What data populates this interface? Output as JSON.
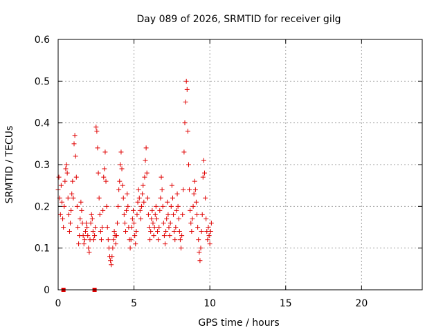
{
  "chart_data": {
    "type": "scatter",
    "title": "Day 089 of 2026, SRMTID for receiver gilg",
    "xlabel": "GPS time / hours",
    "ylabel": "SRMTID / TECUs",
    "xlim": [
      0,
      24
    ],
    "ylim": [
      0,
      0.6
    ],
    "xticks": [
      0,
      5,
      10,
      15,
      20
    ],
    "yticks": [
      0,
      0.1,
      0.2,
      0.3,
      0.4,
      0.5,
      0.6
    ],
    "grid": true,
    "marker": "plus",
    "color": "#e00000",
    "series": [
      {
        "name": "SRMTID",
        "points": [
          [
            0.0,
            0.24
          ],
          [
            0.05,
            0.27
          ],
          [
            0.1,
            0.22
          ],
          [
            0.15,
            0.18
          ],
          [
            0.2,
            0.25
          ],
          [
            0.25,
            0.21
          ],
          [
            0.3,
            0.17
          ],
          [
            0.35,
            0.15
          ],
          [
            0.4,
            0.2
          ],
          [
            0.45,
            0.26
          ],
          [
            0.5,
            0.29
          ],
          [
            0.55,
            0.3
          ],
          [
            0.6,
            0.28
          ],
          [
            0.65,
            0.22
          ],
          [
            0.7,
            0.18
          ],
          [
            0.75,
            0.14
          ],
          [
            0.8,
            0.16
          ],
          [
            0.85,
            0.19
          ],
          [
            0.9,
            0.23
          ],
          [
            0.95,
            0.26
          ],
          [
            1.0,
            0.22
          ],
          [
            1.05,
            0.35
          ],
          [
            1.1,
            0.37
          ],
          [
            1.15,
            0.32
          ],
          [
            1.2,
            0.27
          ],
          [
            1.25,
            0.2
          ],
          [
            1.3,
            0.15
          ],
          [
            1.35,
            0.11
          ],
          [
            1.4,
            0.13
          ],
          [
            1.45,
            0.17
          ],
          [
            1.5,
            0.21
          ],
          [
            1.55,
            0.19
          ],
          [
            1.6,
            0.16
          ],
          [
            1.65,
            0.13
          ],
          [
            1.7,
            0.11
          ],
          [
            1.75,
            0.12
          ],
          [
            1.8,
            0.14
          ],
          [
            1.85,
            0.16
          ],
          [
            1.9,
            0.15
          ],
          [
            1.95,
            0.13
          ],
          [
            2.0,
            0.1
          ],
          [
            2.05,
            0.09
          ],
          [
            2.1,
            0.12
          ],
          [
            2.15,
            0.16
          ],
          [
            2.2,
            0.18
          ],
          [
            2.25,
            0.17
          ],
          [
            2.3,
            0.14
          ],
          [
            2.35,
            0.12
          ],
          [
            2.4,
            0.13
          ],
          [
            2.45,
            0.15
          ],
          [
            2.5,
            0.39
          ],
          [
            2.55,
            0.38
          ],
          [
            2.6,
            0.34
          ],
          [
            2.65,
            0.28
          ],
          [
            2.7,
            0.22
          ],
          [
            2.75,
            0.18
          ],
          [
            2.8,
            0.14
          ],
          [
            2.85,
            0.12
          ],
          [
            2.9,
            0.15
          ],
          [
            2.95,
            0.19
          ],
          [
            3.0,
            0.27
          ],
          [
            3.05,
            0.29
          ],
          [
            3.1,
            0.33
          ],
          [
            3.15,
            0.26
          ],
          [
            3.2,
            0.2
          ],
          [
            3.25,
            0.15
          ],
          [
            3.3,
            0.12
          ],
          [
            3.35,
            0.1
          ],
          [
            3.4,
            0.08
          ],
          [
            3.45,
            0.07
          ],
          [
            3.5,
            0.06
          ],
          [
            3.55,
            0.08
          ],
          [
            3.6,
            0.1
          ],
          [
            3.65,
            0.12
          ],
          [
            3.7,
            0.14
          ],
          [
            3.75,
            0.13
          ],
          [
            3.8,
            0.11
          ],
          [
            3.85,
            0.13
          ],
          [
            3.9,
            0.16
          ],
          [
            3.95,
            0.2
          ],
          [
            4.0,
            0.24
          ],
          [
            4.05,
            0.26
          ],
          [
            4.1,
            0.3
          ],
          [
            4.15,
            0.33
          ],
          [
            4.2,
            0.29
          ],
          [
            4.25,
            0.25
          ],
          [
            4.3,
            0.22
          ],
          [
            4.35,
            0.18
          ],
          [
            4.4,
            0.16
          ],
          [
            4.45,
            0.14
          ],
          [
            4.5,
            0.19
          ],
          [
            4.55,
            0.23
          ],
          [
            4.6,
            0.2
          ],
          [
            4.65,
            0.15
          ],
          [
            4.7,
            0.12
          ],
          [
            4.75,
            0.1
          ],
          [
            4.8,
            0.12
          ],
          [
            4.85,
            0.15
          ],
          [
            4.9,
            0.17
          ],
          [
            4.95,
            0.19
          ],
          [
            5.0,
            0.16
          ],
          [
            5.05,
            0.13
          ],
          [
            5.1,
            0.11
          ],
          [
            5.15,
            0.14
          ],
          [
            5.2,
            0.18
          ],
          [
            5.25,
            0.21
          ],
          [
            5.3,
            0.24
          ],
          [
            5.35,
            0.22
          ],
          [
            5.4,
            0.19
          ],
          [
            5.45,
            0.17
          ],
          [
            5.5,
            0.2
          ],
          [
            5.55,
            0.23
          ],
          [
            5.6,
            0.25
          ],
          [
            5.65,
            0.21
          ],
          [
            5.7,
            0.27
          ],
          [
            5.75,
            0.31
          ],
          [
            5.8,
            0.34
          ],
          [
            5.85,
            0.28
          ],
          [
            5.9,
            0.22
          ],
          [
            5.95,
            0.18
          ],
          [
            6.0,
            0.15
          ],
          [
            6.05,
            0.12
          ],
          [
            6.1,
            0.14
          ],
          [
            6.15,
            0.17
          ],
          [
            6.2,
            0.19
          ],
          [
            6.25,
            0.16
          ],
          [
            6.3,
            0.13
          ],
          [
            6.35,
            0.15
          ],
          [
            6.4,
            0.18
          ],
          [
            6.45,
            0.2
          ],
          [
            6.5,
            0.17
          ],
          [
            6.55,
            0.14
          ],
          [
            6.6,
            0.12
          ],
          [
            6.65,
            0.15
          ],
          [
            6.7,
            0.19
          ],
          [
            6.75,
            0.22
          ],
          [
            6.8,
            0.27
          ],
          [
            6.85,
            0.24
          ],
          [
            6.9,
            0.2
          ],
          [
            6.95,
            0.16
          ],
          [
            7.0,
            0.13
          ],
          [
            7.05,
            0.11
          ],
          [
            7.1,
            0.14
          ],
          [
            7.15,
            0.17
          ],
          [
            7.2,
            0.21
          ],
          [
            7.25,
            0.18
          ],
          [
            7.3,
            0.15
          ],
          [
            7.35,
            0.13
          ],
          [
            7.4,
            0.16
          ],
          [
            7.45,
            0.2
          ],
          [
            7.5,
            0.25
          ],
          [
            7.55,
            0.22
          ],
          [
            7.6,
            0.18
          ],
          [
            7.65,
            0.14
          ],
          [
            7.7,
            0.12
          ],
          [
            7.75,
            0.15
          ],
          [
            7.8,
            0.19
          ],
          [
            7.85,
            0.23
          ],
          [
            7.9,
            0.2
          ],
          [
            7.95,
            0.17
          ],
          [
            8.0,
            0.14
          ],
          [
            8.05,
            0.12
          ],
          [
            8.1,
            0.1
          ],
          [
            8.15,
            0.13
          ],
          [
            8.2,
            0.18
          ],
          [
            8.25,
            0.24
          ],
          [
            8.3,
            0.33
          ],
          [
            8.35,
            0.4
          ],
          [
            8.4,
            0.45
          ],
          [
            8.45,
            0.5
          ],
          [
            8.5,
            0.48
          ],
          [
            8.55,
            0.38
          ],
          [
            8.6,
            0.3
          ],
          [
            8.65,
            0.24
          ],
          [
            8.7,
            0.19
          ],
          [
            8.75,
            0.16
          ],
          [
            8.8,
            0.14
          ],
          [
            8.85,
            0.17
          ],
          [
            8.9,
            0.2
          ],
          [
            8.95,
            0.23
          ],
          [
            9.0,
            0.26
          ],
          [
            9.05,
            0.24
          ],
          [
            9.1,
            0.21
          ],
          [
            9.15,
            0.18
          ],
          [
            9.2,
            0.15
          ],
          [
            9.25,
            0.12
          ],
          [
            9.3,
            0.09
          ],
          [
            9.35,
            0.07
          ],
          [
            9.4,
            0.1
          ],
          [
            9.45,
            0.14
          ],
          [
            9.5,
            0.18
          ],
          [
            9.55,
            0.27
          ],
          [
            9.6,
            0.31
          ],
          [
            9.65,
            0.28
          ],
          [
            9.7,
            0.22
          ],
          [
            9.75,
            0.17
          ],
          [
            9.8,
            0.14
          ],
          [
            9.85,
            0.12
          ],
          [
            9.9,
            0.15
          ],
          [
            9.95,
            0.13
          ],
          [
            10.0,
            0.11
          ],
          [
            10.05,
            0.14
          ],
          [
            10.1,
            0.16
          ]
        ]
      }
    ],
    "extra_points": [
      [
        0.35,
        0.0
      ],
      [
        2.4,
        0.0
      ]
    ]
  }
}
